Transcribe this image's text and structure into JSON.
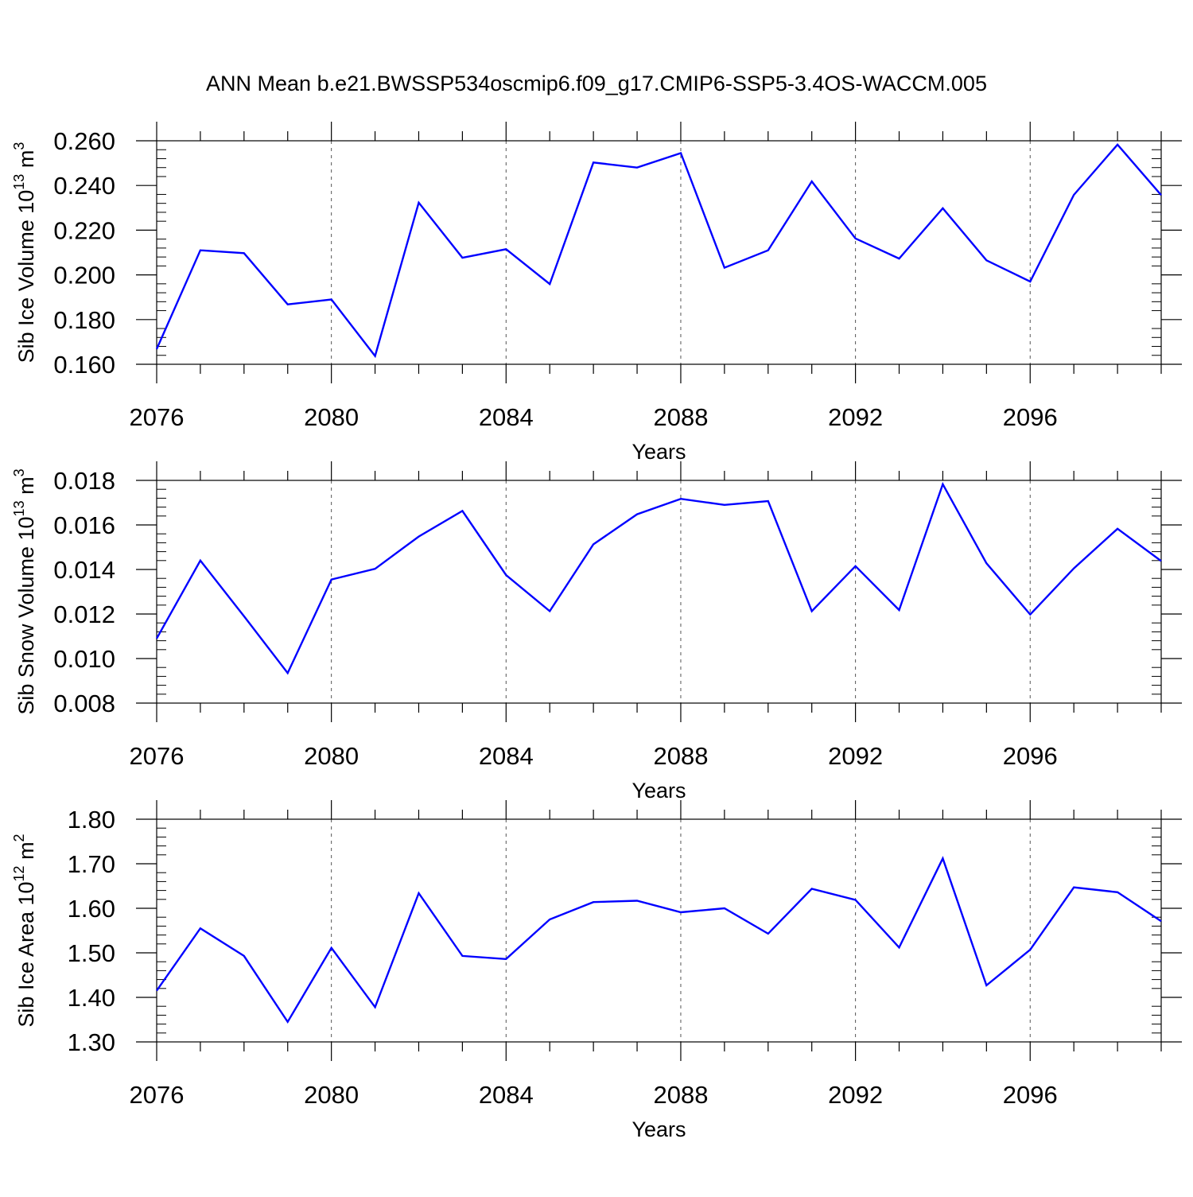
{
  "title": "ANN Mean b.e21.BWSSP534oscmip6.f09_g17.CMIP6-SSP5-3.4OS-WACCM.005",
  "colors": {
    "line": "#0000ff",
    "axis": "#000000",
    "grid": "#555555"
  },
  "chart_data": [
    {
      "type": "line",
      "ylabel": "Sib Ice Volume 10",
      "ylabel_exp": "13",
      "ylabel_unit": " m",
      "ylabel_unit_exp": "3",
      "xlabel": "Years",
      "xlim": [
        2076,
        2099
      ],
      "ylim": [
        0.16,
        0.26
      ],
      "yticks": [
        0.16,
        0.18,
        0.2,
        0.22,
        0.24,
        0.26
      ],
      "ytick_labels": [
        "0.160",
        "0.180",
        "0.200",
        "0.220",
        "0.240",
        "0.260"
      ],
      "xticks": [
        2076,
        2080,
        2084,
        2088,
        2092,
        2096
      ],
      "xtick_labels": [
        "2076",
        "2080",
        "2084",
        "2088",
        "2092",
        "2096"
      ],
      "grid": "vertical dashed at major x ticks",
      "x": [
        2076,
        2077,
        2078,
        2079,
        2080,
        2081,
        2082,
        2083,
        2084,
        2085,
        2086,
        2087,
        2088,
        2089,
        2090,
        2091,
        2092,
        2093,
        2094,
        2095,
        2096,
        2097,
        2098,
        2099
      ],
      "values": [
        0.1668,
        0.211,
        0.2097,
        0.1868,
        0.189,
        0.1637,
        0.2323,
        0.2077,
        0.2115,
        0.1959,
        0.2503,
        0.248,
        0.2545,
        0.2032,
        0.211,
        0.2418,
        0.2163,
        0.2073,
        0.2298,
        0.2065,
        0.197,
        0.2358,
        0.2583,
        0.2357
      ]
    },
    {
      "type": "line",
      "ylabel": "Sib Snow Volume 10",
      "ylabel_exp": "13",
      "ylabel_unit": " m",
      "ylabel_unit_exp": "3",
      "xlabel": "Years",
      "xlim": [
        2076,
        2099
      ],
      "ylim": [
        0.008,
        0.018
      ],
      "yticks": [
        0.008,
        0.01,
        0.012,
        0.014,
        0.016,
        0.018
      ],
      "ytick_labels": [
        "0.008",
        "0.010",
        "0.012",
        "0.014",
        "0.016",
        "0.018"
      ],
      "xticks": [
        2076,
        2080,
        2084,
        2088,
        2092,
        2096
      ],
      "xtick_labels": [
        "2076",
        "2080",
        "2084",
        "2088",
        "2092",
        "2096"
      ],
      "grid": "vertical dashed at major x ticks",
      "x": [
        2076,
        2077,
        2078,
        2079,
        2080,
        2081,
        2082,
        2083,
        2084,
        2085,
        2086,
        2087,
        2088,
        2089,
        2090,
        2091,
        2092,
        2093,
        2094,
        2095,
        2096,
        2097,
        2098,
        2099
      ],
      "values": [
        0.0109,
        0.0144,
        0.0119,
        0.00935,
        0.01355,
        0.01403,
        0.01548,
        0.01663,
        0.01375,
        0.01213,
        0.01513,
        0.01648,
        0.01717,
        0.0169,
        0.01707,
        0.01213,
        0.01415,
        0.01218,
        0.01783,
        0.01428,
        0.01198,
        0.01405,
        0.01583,
        0.01438
      ]
    },
    {
      "type": "line",
      "ylabel": "Sib Ice Area 10",
      "ylabel_exp": "12",
      "ylabel_unit": " m",
      "ylabel_unit_exp": "2",
      "xlabel": "Years",
      "xlim": [
        2076,
        2099
      ],
      "ylim": [
        1.3,
        1.8
      ],
      "yticks": [
        1.3,
        1.4,
        1.5,
        1.6,
        1.7,
        1.8
      ],
      "ytick_labels": [
        "1.30",
        "1.40",
        "1.50",
        "1.60",
        "1.70",
        "1.80"
      ],
      "xticks": [
        2076,
        2080,
        2084,
        2088,
        2092,
        2096
      ],
      "xtick_labels": [
        "2076",
        "2080",
        "2084",
        "2088",
        "2092",
        "2096"
      ],
      "grid": "vertical dashed at major x ticks",
      "x": [
        2076,
        2077,
        2078,
        2079,
        2080,
        2081,
        2082,
        2083,
        2084,
        2085,
        2086,
        2087,
        2088,
        2089,
        2090,
        2091,
        2092,
        2093,
        2094,
        2095,
        2096,
        2097,
        2098,
        2099
      ],
      "values": [
        1.415,
        1.555,
        1.493,
        1.345,
        1.511,
        1.378,
        1.634,
        1.493,
        1.486,
        1.575,
        1.614,
        1.617,
        1.591,
        1.6,
        1.543,
        1.644,
        1.619,
        1.512,
        1.712,
        1.427,
        1.507,
        1.647,
        1.636,
        1.571
      ]
    }
  ]
}
